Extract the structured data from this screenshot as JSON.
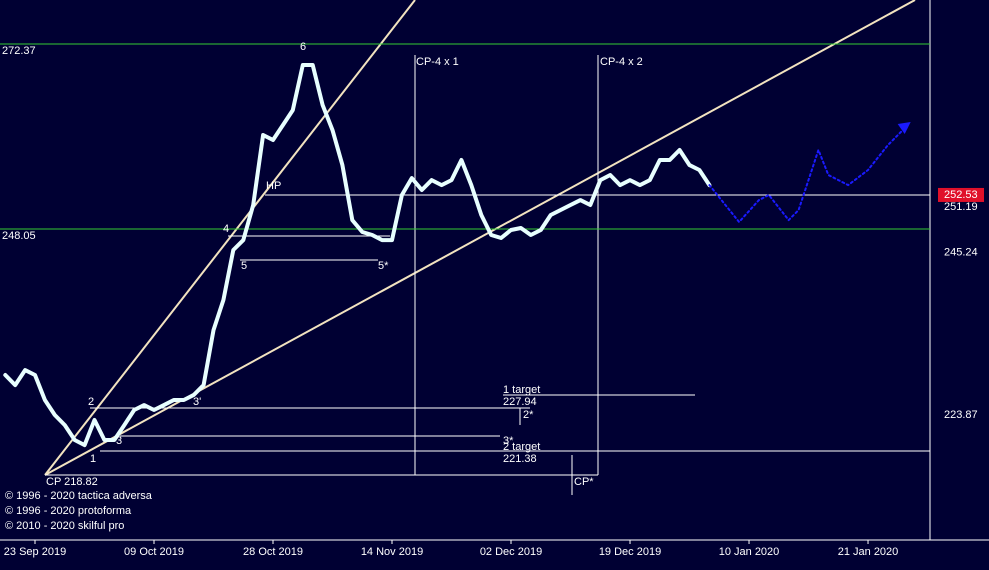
{
  "chart_data": {
    "type": "line",
    "xlim": [
      -3.53,
      90.25
    ],
    "ylim": [
      207.17,
      278.16
    ],
    "xticks": [
      {
        "value": 0,
        "label": "23 Sep 2019"
      },
      {
        "value": 12,
        "label": "09 Oct 2019"
      },
      {
        "value": 24,
        "label": "28 Oct 2019"
      },
      {
        "value": 36,
        "label": "14 Nov 2019"
      },
      {
        "value": 48,
        "label": "02 Dec 2019"
      },
      {
        "value": 60,
        "label": "19 Dec 2019"
      },
      {
        "value": 72,
        "label": "10 Jan 2020"
      },
      {
        "value": 84,
        "label": "21 Jan 2020"
      }
    ],
    "series": [
      {
        "color": "#e8ffff",
        "x": [
          -3,
          -2,
          -1,
          0,
          1,
          2,
          3,
          4,
          5,
          6,
          7,
          8,
          9,
          10,
          11,
          12,
          13,
          14,
          15,
          16,
          17,
          18,
          19,
          20,
          21,
          22,
          23,
          24,
          25,
          26,
          27,
          28,
          29,
          30,
          31,
          32,
          33,
          34,
          35,
          36,
          37,
          38,
          39,
          40,
          41,
          42,
          43,
          44,
          45,
          46,
          47,
          48,
          49,
          50,
          51,
          52,
          53,
          54,
          55,
          56,
          57,
          58,
          59,
          60,
          61,
          62,
          63,
          64,
          65,
          66,
          67,
          68
        ],
        "values": [
          228.86,
          227.54,
          229.51,
          228.86,
          225.57,
          223.6,
          222.28,
          220.31,
          219.65,
          222.94,
          220.31,
          220.31,
          222.28,
          224.26,
          224.91,
          224.26,
          224.91,
          225.57,
          225.57,
          226.23,
          227.54,
          234.77,
          238.72,
          245.29,
          246.6,
          251.21,
          260.41,
          259.75,
          261.72,
          263.69,
          269.61,
          269.61,
          264.35,
          261.06,
          256.46,
          249.23,
          247.66,
          247.26,
          246.6,
          246.6,
          252.52,
          254.75,
          253.18,
          254.49,
          253.83,
          254.49,
          257.12,
          253.83,
          249.89,
          247.26,
          246.87,
          247.92,
          248.18,
          247.26,
          247.92,
          249.89,
          250.55,
          251.21,
          251.86,
          251.21,
          254.49,
          255.15,
          253.83,
          254.49,
          253.83,
          254.49,
          257.12,
          257.12,
          258.44,
          256.46,
          255.81,
          253.83
        ]
      },
      {
        "color": "#1a1aff",
        "dashed": true,
        "x": [
          68,
          71,
          73,
          74,
          76,
          77,
          79,
          80,
          82,
          84,
          86,
          88
        ],
        "values": [
          253.83,
          248.97,
          251.86,
          252.52,
          249.23,
          250.55,
          258.44,
          255.15,
          253.83,
          255.81,
          259.09,
          261.72
        ]
      }
    ],
    "levels": [
      {
        "value": 272.37,
        "label": "272.37",
        "side": "left",
        "color": "#33cc33"
      },
      {
        "value": 248.05,
        "label": "248.05",
        "side": "left",
        "color": "#33cc33"
      },
      {
        "value": 252.53,
        "label": "252.53",
        "side": "right",
        "color": "#ffffff",
        "highlight": "#e0102a"
      },
      {
        "value": 251.19,
        "label": "251.19",
        "side": "right"
      },
      {
        "value": 245.24,
        "label": "245.24",
        "side": "right"
      },
      {
        "value": 223.87,
        "label": "223.87",
        "side": "right"
      }
    ],
    "annotations": [
      "CP-4 x 1",
      "CP-4 x 2",
      "HP",
      "1 target",
      "227.94",
      "2*",
      "3*",
      "2 target",
      "221.38",
      "CP 218.82",
      "CP*",
      "5*",
      "6",
      "4",
      "5",
      "2",
      "3",
      "1",
      "3'"
    ],
    "credits": [
      "© 1996 - 2020 tactica adversa",
      "© 1996 - 2020 protoforma",
      "© 2010 - 2020 skilful pro"
    ]
  }
}
